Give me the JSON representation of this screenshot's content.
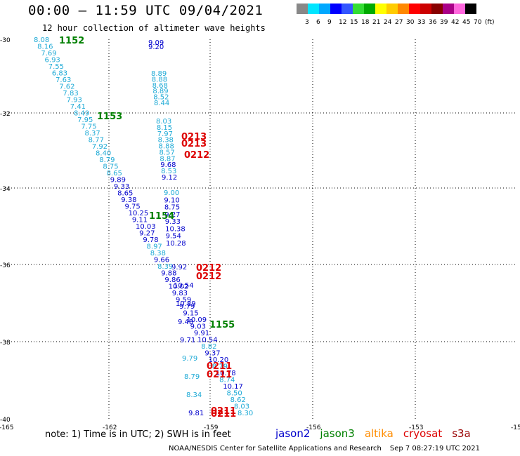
{
  "header": {
    "title": "00:00 – 11:59 UTC 09/04/2021",
    "subtitle": "12 hour collection of altimeter wave heights"
  },
  "colorbar": {
    "colors": [
      "#888888",
      "#00e5ff",
      "#00a8ff",
      "#0000ff",
      "#3355ff",
      "#33dd33",
      "#00aa00",
      "#ffff00",
      "#ffcc00",
      "#ff8800",
      "#ff0000",
      "#cc0000",
      "#880000",
      "#aa0088",
      "#ff66dd",
      "#000000"
    ],
    "labels": [
      "3",
      "6",
      "9",
      "12",
      "15",
      "18",
      "21",
      "24",
      "27",
      "30",
      "33",
      "36",
      "39",
      "42",
      "45",
      "70",
      "(ft)"
    ]
  },
  "map": {
    "lat_labels": [
      "-30",
      "-32",
      "-34",
      "-36",
      "-38",
      "-40"
    ],
    "lon_labels": [
      "-165",
      "-162",
      "-159",
      "-156",
      "-153",
      "-15"
    ],
    "satellite_colors": {
      "jason2": "#0000cc",
      "jason3": "#008000",
      "altika": "#ff8c00",
      "cryosat": "#dd0000",
      "s3a": "#990000",
      "cyan": "#1eaad6"
    },
    "track_a": [
      {
        "v": "8.08",
        "c": "cyan"
      },
      {
        "v": "8.16",
        "c": "cyan"
      },
      {
        "v": "7.69",
        "c": "cyan"
      },
      {
        "v": "6.93",
        "c": "cyan"
      },
      {
        "v": "7.55",
        "c": "cyan"
      },
      {
        "v": "6.83",
        "c": "cyan"
      },
      {
        "v": "7.63",
        "c": "cyan"
      },
      {
        "v": "7.62",
        "c": "cyan"
      },
      {
        "v": "7.83",
        "c": "cyan"
      },
      {
        "v": "7.93",
        "c": "cyan"
      },
      {
        "v": "7.41",
        "c": "cyan"
      },
      {
        "v": "8.49",
        "c": "cyan"
      },
      {
        "v": "7.95",
        "c": "cyan"
      },
      {
        "v": "7.75",
        "c": "cyan"
      },
      {
        "v": "8.37",
        "c": "cyan"
      },
      {
        "v": "8.77",
        "c": "cyan"
      },
      {
        "v": "7.92",
        "c": "cyan"
      },
      {
        "v": "8.40",
        "c": "cyan"
      },
      {
        "v": "8.79",
        "c": "cyan"
      },
      {
        "v": "8.75",
        "c": "cyan"
      },
      {
        "v": "8.65",
        "c": "cyan"
      },
      {
        "v": "9.89",
        "c": "jason2"
      },
      {
        "v": "9.33",
        "c": "jason2"
      },
      {
        "v": "8.65",
        "c": "jason2"
      },
      {
        "v": "9.38",
        "c": "jason2"
      },
      {
        "v": "9.75",
        "c": "jason2"
      },
      {
        "v": "10.25",
        "c": "jason2"
      },
      {
        "v": "9.11",
        "c": "jason2"
      },
      {
        "v": "10.03",
        "c": "jason2"
      },
      {
        "v": "9.27",
        "c": "jason2"
      },
      {
        "v": "9.78",
        "c": "jason2"
      },
      {
        "v": "8.97",
        "c": "cyan"
      },
      {
        "v": "8.38",
        "c": "cyan"
      },
      {
        "v": "9.66",
        "c": "jason2"
      },
      {
        "v": "8.39",
        "c": "cyan"
      },
      {
        "v": "9.88",
        "c": "jason2"
      },
      {
        "v": "9.86",
        "c": "jason2"
      },
      {
        "v": "10.02",
        "c": "jason2"
      },
      {
        "v": "9.83",
        "c": "jason2"
      },
      {
        "v": "9.59",
        "c": "jason2"
      },
      {
        "v": "9.79",
        "c": "jason2"
      },
      {
        "v": "9.15",
        "c": "jason2"
      },
      {
        "v": "10.09",
        "c": "jason2"
      },
      {
        "v": "9.03",
        "c": "jason2"
      },
      {
        "v": "9.91",
        "c": "jason2"
      },
      {
        "v": "10.54",
        "c": "jason2"
      },
      {
        "v": "8.82",
        "c": "cyan"
      },
      {
        "v": "9.37",
        "c": "jason2"
      },
      {
        "v": "10.20",
        "c": "jason2"
      },
      {
        "v": "8.79",
        "c": "cyan"
      },
      {
        "v": "10.78",
        "c": "jason2"
      },
      {
        "v": "8.74",
        "c": "cyan"
      },
      {
        "v": "10.17",
        "c": "jason2"
      },
      {
        "v": "8.50",
        "c": "cyan"
      },
      {
        "v": "8.62",
        "c": "cyan"
      },
      {
        "v": "8.03",
        "c": "cyan"
      },
      {
        "v": "8.30",
        "c": "cyan"
      }
    ],
    "track_b": [
      {
        "v": "9.09",
        "c": "jason2"
      },
      {
        "v": "9.20",
        "c": "jason2"
      },
      {
        "v": "8.89",
        "c": "cyan"
      },
      {
        "v": "8.88",
        "c": "cyan"
      },
      {
        "v": "8.68",
        "c": "cyan"
      },
      {
        "v": "8.89",
        "c": "cyan"
      },
      {
        "v": "8.52",
        "c": "cyan"
      },
      {
        "v": "8.44",
        "c": "cyan"
      },
      {
        "v": "8.03",
        "c": "cyan"
      },
      {
        "v": "8.15",
        "c": "cyan"
      },
      {
        "v": "7.97",
        "c": "cyan"
      },
      {
        "v": "8.38",
        "c": "cyan"
      },
      {
        "v": "8.88",
        "c": "cyan"
      },
      {
        "v": "8.57",
        "c": "cyan"
      },
      {
        "v": "8.87",
        "c": "cyan"
      },
      {
        "v": "9.68",
        "c": "jason2"
      },
      {
        "v": "8.53",
        "c": "cyan"
      },
      {
        "v": "9.12",
        "c": "jason2"
      },
      {
        "v": "9.00",
        "c": "cyan"
      },
      {
        "v": "9.10",
        "c": "jason2"
      },
      {
        "v": "8.75",
        "c": "jason2"
      },
      {
        "v": "9.27",
        "c": "jason2"
      },
      {
        "v": "9.33",
        "c": "jason2"
      },
      {
        "v": "10.38",
        "c": "jason2"
      },
      {
        "v": "9.54",
        "c": "jason2"
      },
      {
        "v": "10.28",
        "c": "jason2"
      },
      {
        "v": "9.92",
        "c": "jason2"
      },
      {
        "v": "10.54",
        "c": "jason2"
      },
      {
        "v": "10.89",
        "c": "jason2"
      },
      {
        "v": "9.48",
        "c": "jason2"
      },
      {
        "v": "9.71",
        "c": "jason2"
      },
      {
        "v": "9.79",
        "c": "cyan"
      },
      {
        "v": "8.79",
        "c": "cyan"
      },
      {
        "v": "8.34",
        "c": "cyan"
      },
      {
        "v": "9.81",
        "c": "jason2"
      }
    ],
    "time_labels": [
      {
        "t": "1152",
        "c": "jason3"
      },
      {
        "t": "1153",
        "c": "jason3"
      },
      {
        "t": "1154",
        "c": "jason3"
      },
      {
        "t": "1155",
        "c": "jason3"
      },
      {
        "t": "0213",
        "c": "cryosat"
      },
      {
        "t": "0213",
        "c": "cryosat"
      },
      {
        "t": "0212",
        "c": "cryosat"
      },
      {
        "t": "0212",
        "c": "cryosat"
      },
      {
        "t": "0212",
        "c": "cryosat"
      },
      {
        "t": "0211",
        "c": "cryosat"
      },
      {
        "t": "0211",
        "c": "cryosat"
      },
      {
        "t": "0211",
        "c": "cryosat"
      },
      {
        "t": "0211",
        "c": "cryosat"
      }
    ]
  },
  "footer": {
    "note": "note: 1) Time is in UTC; 2) SWH is in feet",
    "legend": [
      {
        "name": "jason2",
        "color": "#0000cc"
      },
      {
        "name": "jason3",
        "color": "#008000"
      },
      {
        "name": "altika",
        "color": "#ff8c00"
      },
      {
        "name": "cryosat",
        "color": "#dd0000"
      },
      {
        "name": "s3a",
        "color": "#990000"
      }
    ],
    "credit": "NOAA/NESDIS Center for Satellite Applications and Research",
    "timestamp": "Sep  7 08:27:19 UTC 2021"
  }
}
